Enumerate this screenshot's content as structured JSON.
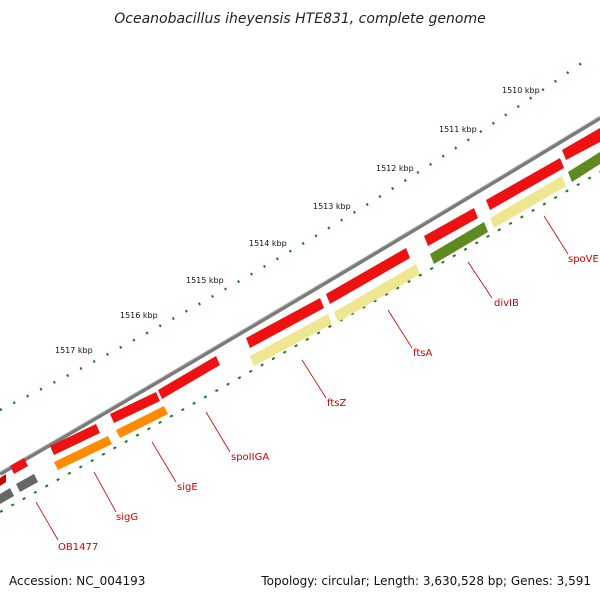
{
  "title": "Oceanobacillus iheyensis HTE831, complete genome",
  "ticks": [
    "1510 kbp",
    "1511 kbp",
    "1512 kbp",
    "1513 kbp",
    "1514 kbp",
    "1515 kbp",
    "1516 kbp",
    "1517 kbp"
  ],
  "genes": [
    "spoVE",
    "divIB",
    "ftsA",
    "ftsZ",
    "spoIIGA",
    "sigE",
    "sigG",
    "OB1477"
  ],
  "footer": {
    "accession": "Accession: NC_004193",
    "topology": "Topology: circular; Length: 3,630,528 bp; Genes: 3,591"
  },
  "colors": {
    "backbone": "#7a7a7a",
    "cds_forward": "#ee1111",
    "cds_reverse_grey": "#666666",
    "pale": "#eee690",
    "orange": "#ff8c00",
    "olive": "#5f8a20",
    "tick_dots": "#1a7a1a",
    "label": "#cc0000"
  }
}
